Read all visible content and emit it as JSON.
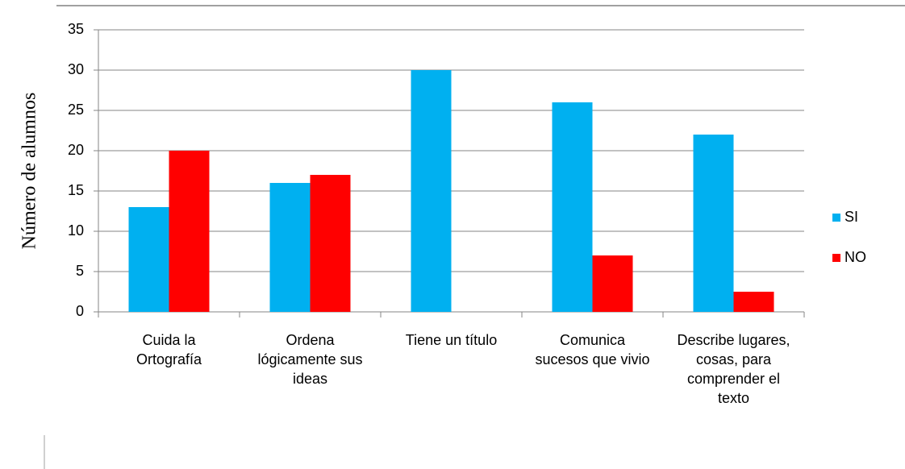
{
  "chart_data": {
    "type": "bar",
    "y_label": "Número de alumnos",
    "categories": [
      "Cuida la Ortografía",
      "Ordena lógicamente sus ideas",
      "Tiene un título",
      "Comunica sucesos que vivio",
      "Describe lugares, cosas, para comprender el texto"
    ],
    "series": [
      {
        "name": "SI",
        "color": "#00b0f0",
        "values": [
          13,
          16,
          30,
          26,
          22
        ]
      },
      {
        "name": "NO",
        "color": "#ff0000",
        "values": [
          20,
          17,
          0,
          7,
          2.5
        ]
      }
    ],
    "ylim": [
      0,
      35
    ],
    "yticks": [
      0,
      5,
      10,
      15,
      20,
      25,
      30,
      35
    ],
    "grid": true,
    "legend": "right"
  }
}
